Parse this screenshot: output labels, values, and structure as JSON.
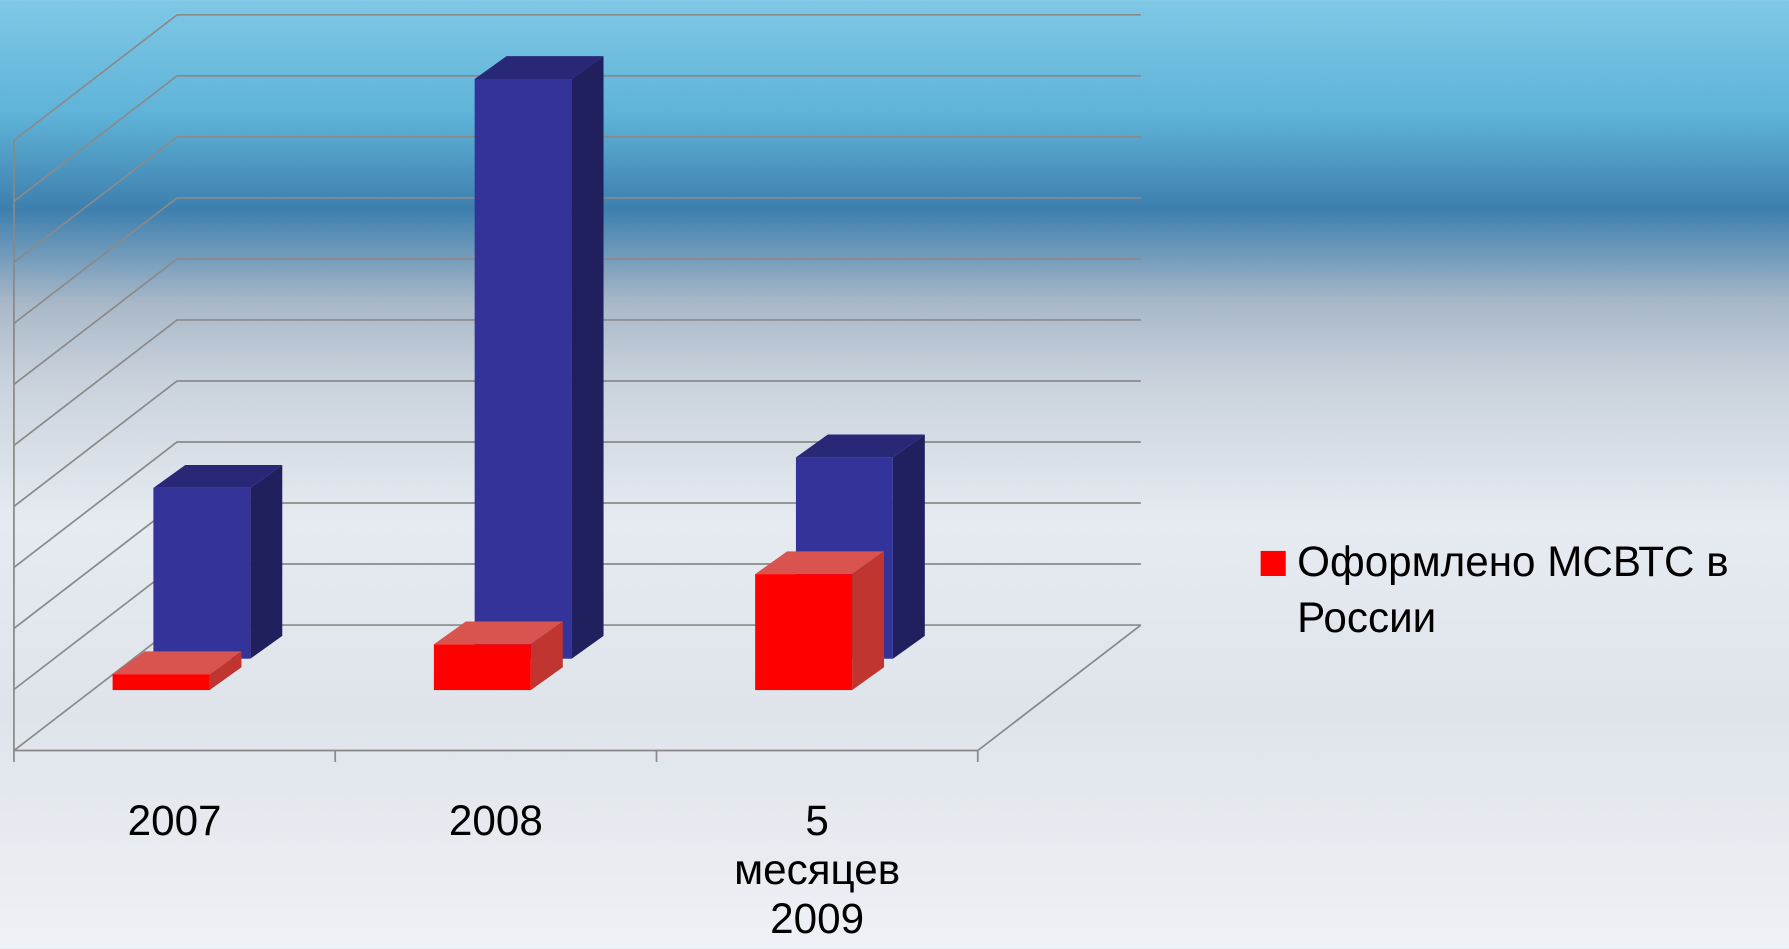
{
  "chart_data": {
    "type": "bar3d",
    "categories": [
      "2007",
      "2008",
      "5\nмесяцев\n2009"
    ],
    "series": [
      {
        "color": "#333399",
        "values": [
          2.8,
          9.5,
          3.3
        ]
      },
      {
        "name": "Оформлено МСВТС в России",
        "color": "#ff0000",
        "values": [
          0.26,
          0.75,
          1.9
        ]
      }
    ],
    "ylim": [
      0,
      10
    ],
    "yticks": [
      0,
      1,
      2,
      3,
      4,
      5,
      6,
      7,
      8,
      9,
      10
    ],
    "grid": true,
    "legend": "right"
  }
}
